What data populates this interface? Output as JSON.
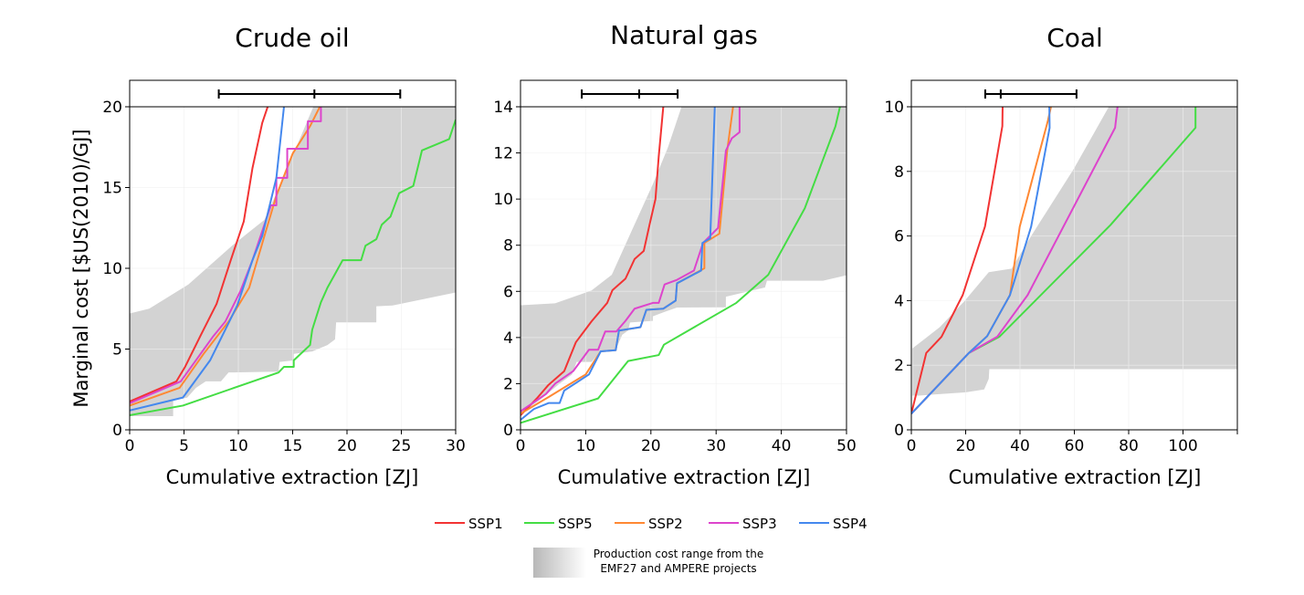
{
  "legend": {
    "items": [
      {
        "label": "SSP1",
        "color": "#f23333"
      },
      {
        "label": "SSP5",
        "color": "#44dd44"
      },
      {
        "label": "SSP2",
        "color": "#ff8833"
      },
      {
        "label": "SSP3",
        "color": "#dd44cc"
      },
      {
        "label": "SSP4",
        "color": "#4488ee"
      }
    ],
    "range_label_line1": "Production cost range from the",
    "range_label_line2": "EMF27 and AMPERE projects",
    "range_color": "#d3d3d3"
  },
  "chart_data": [
    {
      "type": "line",
      "title": "Crude oil",
      "xlabel": "Cumulative extraction [ZJ]",
      "ylabel": "Marginal cost [$US(2010)/GJ]",
      "xlim": [
        0,
        30
      ],
      "ylim": [
        0,
        20
      ],
      "xticks": [
        0,
        5,
        10,
        15,
        20,
        25,
        30
      ],
      "yticks": [
        0,
        5,
        10,
        15,
        20
      ],
      "grid": true,
      "error_bar": {
        "low": 8.2,
        "mid": 17.0,
        "high": 24.9
      },
      "shaded_range": [
        [
          0,
          7.2
        ],
        [
          1.8,
          7.5
        ],
        [
          5.4,
          9.0
        ],
        [
          9.6,
          11.5
        ],
        [
          12.4,
          13.0
        ],
        [
          14.4,
          16.0
        ],
        [
          16.9,
          20
        ],
        [
          30,
          20
        ],
        [
          30,
          8.5
        ],
        [
          24.2,
          7.7
        ],
        [
          22.7,
          7.65
        ],
        [
          22.7,
          6.65
        ],
        [
          19.0,
          6.65
        ],
        [
          18.9,
          5.6
        ],
        [
          18.2,
          5.25
        ],
        [
          16.8,
          4.85
        ],
        [
          15.1,
          4.7
        ],
        [
          15.1,
          4.3
        ],
        [
          13.8,
          4.2
        ],
        [
          13.7,
          3.6
        ],
        [
          9.1,
          3.55
        ],
        [
          8.4,
          3.0
        ],
        [
          7.0,
          3.0
        ],
        [
          6.1,
          2.6
        ],
        [
          5.3,
          2.0
        ],
        [
          4.0,
          1.8
        ],
        [
          4.0,
          0.85
        ],
        [
          0,
          0.85
        ]
      ],
      "series": [
        {
          "name": "SSP1",
          "points": [
            [
              0,
              1.75
            ],
            [
              4.3,
              3.0
            ],
            [
              5.1,
              3.9
            ],
            [
              6.5,
              5.8
            ],
            [
              8.0,
              7.8
            ],
            [
              9.3,
              10.5
            ],
            [
              10.5,
              12.9
            ],
            [
              11.3,
              16.2
            ],
            [
              12.2,
              19.0
            ],
            [
              12.7,
              20
            ]
          ]
        },
        {
          "name": "SSP5",
          "points": [
            [
              0,
              0.9
            ],
            [
              4.9,
              1.5
            ],
            [
              13.7,
              3.55
            ],
            [
              14.2,
              3.9
            ],
            [
              15.1,
              3.9
            ],
            [
              15.1,
              4.3
            ],
            [
              16.6,
              5.25
            ],
            [
              16.8,
              6.2
            ],
            [
              17.6,
              7.9
            ],
            [
              18.2,
              8.8
            ],
            [
              19.6,
              10.5
            ],
            [
              21.3,
              10.5
            ],
            [
              21.7,
              11.4
            ],
            [
              22.7,
              11.8
            ],
            [
              23.2,
              12.7
            ],
            [
              24.0,
              13.2
            ],
            [
              24.8,
              14.65
            ],
            [
              26.1,
              15.1
            ],
            [
              26.9,
              17.3
            ],
            [
              29.4,
              18.0
            ],
            [
              30,
              19.2
            ]
          ]
        },
        {
          "name": "SSP2",
          "points": [
            [
              0,
              1.5
            ],
            [
              4.6,
              2.6
            ],
            [
              6.8,
              4.7
            ],
            [
              9.1,
              6.7
            ],
            [
              11.0,
              8.8
            ],
            [
              12.4,
              12.0
            ],
            [
              13.5,
              14.5
            ],
            [
              15.0,
              17.1
            ],
            [
              16.6,
              18.8
            ],
            [
              17.5,
              20
            ]
          ]
        },
        {
          "name": "SSP3",
          "points": [
            [
              0,
              1.65
            ],
            [
              4.7,
              3.0
            ],
            [
              7.7,
              5.8
            ],
            [
              8.8,
              6.7
            ],
            [
              10.2,
              8.6
            ],
            [
              11.3,
              10.5
            ],
            [
              13.0,
              13.9
            ],
            [
              13.5,
              13.9
            ],
            [
              13.5,
              15.6
            ],
            [
              14.5,
              15.6
            ],
            [
              14.5,
              17.4
            ],
            [
              16.4,
              17.4
            ],
            [
              16.4,
              19.1
            ],
            [
              17.6,
              19.1
            ],
            [
              17.6,
              20
            ]
          ]
        },
        {
          "name": "SSP4",
          "points": [
            [
              0,
              1.2
            ],
            [
              4.9,
              2.0
            ],
            [
              7.4,
              4.3
            ],
            [
              8.8,
              6.2
            ],
            [
              9.9,
              7.7
            ],
            [
              11.3,
              10.5
            ],
            [
              12.2,
              12.0
            ],
            [
              13.5,
              15.6
            ],
            [
              14.2,
              20
            ]
          ]
        }
      ]
    },
    {
      "type": "line",
      "title": "Natural gas",
      "xlabel": "Cumulative extraction [ZJ]",
      "ylabel": "",
      "xlim": [
        0,
        50
      ],
      "ylim": [
        0,
        14
      ],
      "xticks": [
        0,
        10,
        20,
        30,
        40,
        50
      ],
      "yticks": [
        0,
        2,
        4,
        6,
        8,
        10,
        12,
        14
      ],
      "grid": true,
      "error_bar": {
        "low": 9.4,
        "mid": 18.2,
        "high": 24.1
      },
      "shaded_range": [
        [
          0,
          5.4
        ],
        [
          5.3,
          5.48
        ],
        [
          10.9,
          6.04
        ],
        [
          14.0,
          6.72
        ],
        [
          16.5,
          8.28
        ],
        [
          20.3,
          10.65
        ],
        [
          22.6,
          12.23
        ],
        [
          24.7,
          14
        ],
        [
          50,
          14
        ],
        [
          50,
          6.7
        ],
        [
          46.4,
          6.46
        ],
        [
          37.8,
          6.46
        ],
        [
          37.5,
          6.17
        ],
        [
          31.5,
          5.77
        ],
        [
          31.5,
          5.31
        ],
        [
          24.0,
          5.3
        ],
        [
          22.1,
          5.11
        ],
        [
          20.3,
          4.92
        ],
        [
          20.3,
          4.72
        ],
        [
          16.8,
          4.65
        ],
        [
          16.5,
          4.3
        ],
        [
          15.6,
          4.12
        ],
        [
          14.6,
          3.47
        ],
        [
          12.3,
          3.4
        ],
        [
          10.9,
          2.94
        ],
        [
          8.6,
          2.94
        ],
        [
          7.9,
          2.4
        ],
        [
          6.0,
          2.0
        ],
        [
          3.0,
          1.3
        ],
        [
          0,
          0.7
        ]
      ],
      "series": [
        {
          "name": "SSP1",
          "points": [
            [
              0,
              0.63
            ],
            [
              2.5,
              1.36
            ],
            [
              4.3,
              1.95
            ],
            [
              6.7,
              2.54
            ],
            [
              8.5,
              3.8
            ],
            [
              10.9,
              4.7
            ],
            [
              13.3,
              5.5
            ],
            [
              14.1,
              6.05
            ],
            [
              16.1,
              6.55
            ],
            [
              17.5,
              7.4
            ],
            [
              18.9,
              7.75
            ],
            [
              19.8,
              8.9
            ],
            [
              20.7,
              10.0
            ],
            [
              21.2,
              11.85
            ],
            [
              21.9,
              14
            ]
          ]
        },
        {
          "name": "SSP5",
          "points": [
            [
              0,
              0.3
            ],
            [
              11.9,
              1.36
            ],
            [
              16.5,
              2.98
            ],
            [
              21.2,
              3.24
            ],
            [
              22.0,
              3.69
            ],
            [
              33.1,
              5.5
            ],
            [
              38.0,
              6.72
            ],
            [
              43.6,
              9.6
            ],
            [
              48.3,
              13.15
            ],
            [
              49.0,
              14
            ]
          ]
        },
        {
          "name": "SSP2",
          "points": [
            [
              0,
              0.7
            ],
            [
              4.3,
              1.42
            ],
            [
              10.0,
              2.4
            ],
            [
              12.3,
              3.4
            ],
            [
              14.6,
              3.45
            ],
            [
              15.1,
              4.3
            ],
            [
              18.4,
              4.45
            ],
            [
              19.3,
              5.2
            ],
            [
              21.9,
              5.25
            ],
            [
              23.8,
              5.6
            ],
            [
              24.0,
              6.35
            ],
            [
              28.2,
              7.0
            ],
            [
              28.2,
              8.1
            ],
            [
              30.5,
              8.5
            ],
            [
              31.7,
              12.1
            ],
            [
              32.6,
              14
            ]
          ]
        },
        {
          "name": "SSP3",
          "points": [
            [
              0,
              0.8
            ],
            [
              3.9,
              1.55
            ],
            [
              5.3,
              2.0
            ],
            [
              8.1,
              2.55
            ],
            [
              10.5,
              3.47
            ],
            [
              11.9,
              3.47
            ],
            [
              13.0,
              4.26
            ],
            [
              14.7,
              4.26
            ],
            [
              16.1,
              4.72
            ],
            [
              17.5,
              5.25
            ],
            [
              20.3,
              5.5
            ],
            [
              21.2,
              5.5
            ],
            [
              22.1,
              6.3
            ],
            [
              24.0,
              6.5
            ],
            [
              26.6,
              6.9
            ],
            [
              27.3,
              7.5
            ],
            [
              28.0,
              8.1
            ],
            [
              30.3,
              8.75
            ],
            [
              31.5,
              12.1
            ],
            [
              32.4,
              12.63
            ],
            [
              33.6,
              12.9
            ],
            [
              33.6,
              14
            ]
          ]
        },
        {
          "name": "SSP4",
          "points": [
            [
              0,
              0.43
            ],
            [
              2.05,
              0.9
            ],
            [
              4.3,
              1.16
            ],
            [
              6.0,
              1.16
            ],
            [
              6.7,
              1.7
            ],
            [
              10.5,
              2.4
            ],
            [
              12.3,
              3.4
            ],
            [
              14.6,
              3.45
            ],
            [
              15.1,
              4.3
            ],
            [
              18.4,
              4.45
            ],
            [
              19.3,
              5.2
            ],
            [
              21.9,
              5.25
            ],
            [
              23.8,
              5.6
            ],
            [
              24.0,
              6.35
            ],
            [
              27.7,
              6.9
            ],
            [
              27.9,
              8.1
            ],
            [
              29.1,
              8.3
            ],
            [
              29.8,
              14
            ]
          ]
        }
      ]
    },
    {
      "type": "line",
      "title": "Coal",
      "xlabel": "Cumulative extraction [ZJ]",
      "ylabel": "",
      "xlim": [
        0,
        120
      ],
      "ylim": [
        0,
        10
      ],
      "xticks": [
        0,
        20,
        40,
        60,
        80,
        100,
        120
      ],
      "xtick_labels": [
        "0",
        "20",
        "40",
        "60",
        "80",
        "100",
        ""
      ],
      "yticks": [
        0,
        2,
        4,
        6,
        8,
        10
      ],
      "grid": true,
      "error_bar": {
        "low": 27.2,
        "mid": 32.9,
        "high": 60.8
      },
      "shaded_range": [
        [
          0.4,
          2.52
        ],
        [
          10.5,
          3.18
        ],
        [
          19.5,
          3.98
        ],
        [
          28.5,
          4.88
        ],
        [
          36.9,
          4.99
        ],
        [
          44.1,
          6.0
        ],
        [
          59.8,
          8.08
        ],
        [
          72.7,
          10
        ],
        [
          120,
          10
        ],
        [
          120,
          1.88
        ],
        [
          28.7,
          1.88
        ],
        [
          28.5,
          1.58
        ],
        [
          26.8,
          1.25
        ],
        [
          20.1,
          1.16
        ],
        [
          2.7,
          1.06
        ],
        [
          0.4,
          1.06
        ]
      ],
      "series": [
        {
          "name": "SSP1",
          "points": [
            [
              0,
              0.5
            ],
            [
              5.5,
              2.38
            ],
            [
              11.1,
              2.88
            ],
            [
              18.9,
              4.17
            ],
            [
              27.1,
              6.29
            ],
            [
              33.5,
              9.4
            ],
            [
              33.6,
              10
            ]
          ]
        },
        {
          "name": "SSP5",
          "points": [
            [
              0,
              0.5
            ],
            [
              21.2,
              2.38
            ],
            [
              32.4,
              2.88
            ],
            [
              73.3,
              6.34
            ],
            [
              104.6,
              9.35
            ],
            [
              104.6,
              10
            ]
          ]
        },
        {
          "name": "SSP2",
          "points": [
            [
              0,
              0.5
            ],
            [
              21.2,
              2.38
            ],
            [
              27.9,
              2.9
            ],
            [
              36.3,
              4.17
            ],
            [
              39.9,
              6.29
            ],
            [
              50.3,
              9.58
            ],
            [
              51.4,
              10
            ]
          ]
        },
        {
          "name": "SSP3",
          "points": [
            [
              0,
              0.5
            ],
            [
              21.2,
              2.38
            ],
            [
              31.6,
              2.88
            ],
            [
              42.8,
              4.17
            ],
            [
              75.0,
              9.35
            ],
            [
              75.9,
              10
            ]
          ]
        },
        {
          "name": "SSP4",
          "points": [
            [
              0,
              0.5
            ],
            [
              21.2,
              2.38
            ],
            [
              27.9,
              2.9
            ],
            [
              36.3,
              4.17
            ],
            [
              44.1,
              6.29
            ],
            [
              50.9,
              9.35
            ],
            [
              50.8,
              10
            ]
          ]
        }
      ]
    }
  ]
}
